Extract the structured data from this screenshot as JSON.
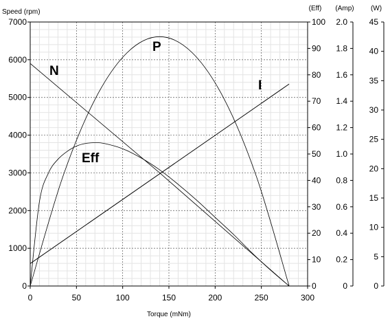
{
  "chart_data": {
    "type": "line",
    "title": "",
    "xlabel": "Torque (mNm)",
    "ylabel": "Speed (rpm)",
    "x_axis": {
      "min": 0,
      "max": 300,
      "ticks": [
        0,
        50,
        100,
        150,
        200,
        250,
        300
      ]
    },
    "axes": {
      "speed": {
        "label": "Speed (rpm)",
        "min": 0,
        "max": 7000,
        "ticks": [
          0,
          1000,
          2000,
          3000,
          4000,
          5000,
          6000,
          7000
        ]
      },
      "eff": {
        "label": "(Eff)",
        "min": 0,
        "max": 100,
        "ticks": [
          0,
          10,
          20,
          30,
          40,
          50,
          60,
          70,
          80,
          90,
          100
        ]
      },
      "amp": {
        "label": "(Amp)",
        "min": 0,
        "max": 2.0,
        "ticks": [
          "0",
          "0.2",
          "0.4",
          "0.6",
          "0.8",
          "1.0",
          "1.2",
          "1.4",
          "1.6",
          "1.8",
          "2.0"
        ]
      },
      "watt": {
        "label": "(W)",
        "min": 0,
        "max": 45,
        "ticks": [
          0,
          5,
          10,
          15,
          20,
          25,
          30,
          35,
          40,
          45
        ]
      }
    },
    "grid": true,
    "series": [
      {
        "name": "N",
        "axis": "speed",
        "x": [
          0,
          140,
          280
        ],
        "y": [
          5900,
          3000,
          0
        ]
      },
      {
        "name": "I",
        "axis": "amp",
        "x": [
          0,
          280
        ],
        "y": [
          0.17,
          1.53
        ]
      },
      {
        "name": "P",
        "axis": "watt",
        "x": [
          0,
          35,
          70,
          105,
          140,
          175,
          210,
          245,
          280
        ],
        "y": [
          0,
          18.5,
          31.8,
          39.8,
          42.5,
          39.8,
          31.8,
          18.5,
          0
        ]
      },
      {
        "name": "Eff",
        "axis": "eff",
        "x": [
          0,
          10,
          20,
          30,
          40,
          50,
          60,
          70,
          80,
          100,
          120,
          140,
          160,
          180,
          200,
          220,
          240,
          260,
          280
        ],
        "y": [
          0,
          32,
          43,
          48,
          51,
          53,
          54,
          54.3,
          54,
          52,
          48.5,
          44,
          38.5,
          32.5,
          26,
          19.5,
          12.5,
          6,
          0
        ]
      }
    ]
  }
}
